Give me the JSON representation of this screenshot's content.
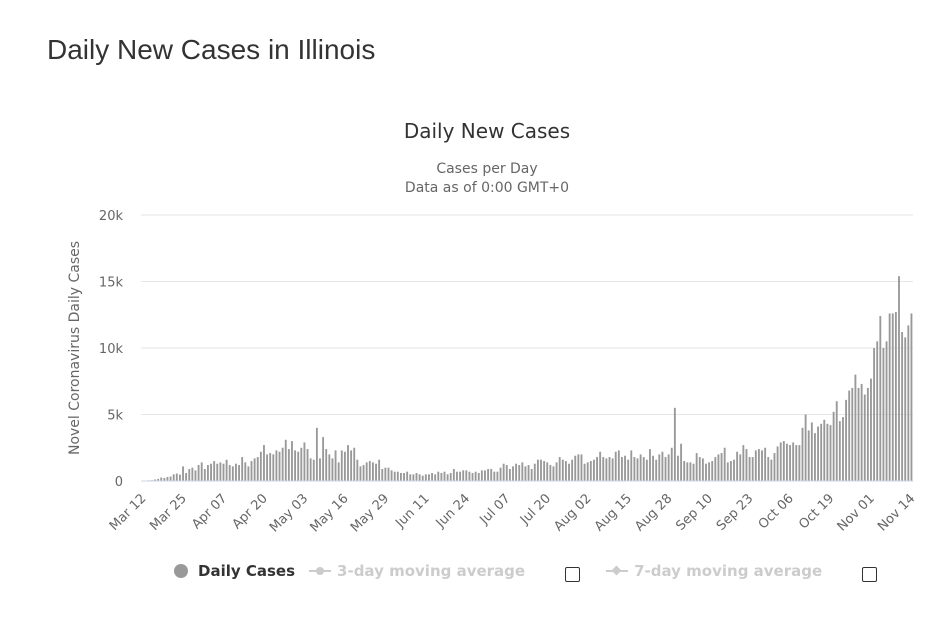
{
  "page": {
    "heading": "Daily New Cases in Illinois"
  },
  "legend": {
    "items": [
      {
        "label": "Daily Cases",
        "state": "visible"
      },
      {
        "label": "3-day moving average",
        "state": "hidden"
      },
      {
        "label": "7-day moving average",
        "state": "hidden"
      }
    ]
  },
  "colors": {
    "bar": "#999999",
    "grid": "#e6e6e6",
    "text": "#666666",
    "title": "#333333",
    "legend_hidden": "#cccccc"
  },
  "chart_data": {
    "type": "bar",
    "title": "Daily New Cases",
    "subtitle_lines": [
      "Cases per Day",
      "Data as of 0:00 GMT+0"
    ],
    "ylabel": "Novel Coronavirus Daily Cases",
    "xlabel": "",
    "ylim": [
      0,
      20000
    ],
    "y_ticks": [
      0,
      5000,
      10000,
      15000,
      20000
    ],
    "y_tick_labels": [
      "0",
      "5k",
      "10k",
      "15k",
      "20k"
    ],
    "x_tick_labels": [
      "Mar 12",
      "Mar 25",
      "Apr 07",
      "Apr 20",
      "May 03",
      "May 16",
      "May 29",
      "Jun 11",
      "Jun 24",
      "Jul 07",
      "Jul 20",
      "Aug 02",
      "Aug 15",
      "Aug 28",
      "Sep 10",
      "Sep 23",
      "Oct 06",
      "Oct 19",
      "Nov 01",
      "Nov 14"
    ],
    "x_tick_every": 13,
    "grid": true,
    "legend_position": "bottom",
    "series": [
      {
        "name": "Daily Cases",
        "start_date": "Mar 12",
        "values": [
          20,
          30,
          50,
          60,
          110,
          160,
          260,
          230,
          300,
          340,
          500,
          560,
          480,
          1100,
          600,
          900,
          1000,
          800,
          1200,
          1400,
          900,
          1200,
          1300,
          1500,
          1300,
          1400,
          1300,
          1600,
          1200,
          1100,
          1300,
          1200,
          1800,
          1400,
          1100,
          1500,
          1700,
          1800,
          2200,
          2700,
          2000,
          2100,
          2000,
          2300,
          2200,
          2500,
          3100,
          2400,
          3000,
          2300,
          2200,
          2500,
          2900,
          2400,
          1700,
          1600,
          4000,
          1700,
          3300,
          2400,
          2000,
          1700,
          2300,
          1400,
          2300,
          2200,
          2700,
          2300,
          2500,
          1600,
          1100,
          1200,
          1400,
          1500,
          1400,
          1300,
          1600,
          900,
          1000,
          1000,
          800,
          700,
          700,
          600,
          600,
          700,
          500,
          500,
          600,
          500,
          400,
          500,
          500,
          600,
          500,
          700,
          600,
          700,
          500,
          600,
          900,
          700,
          700,
          800,
          800,
          700,
          600,
          700,
          600,
          800,
          800,
          900,
          900,
          700,
          700,
          1000,
          1300,
          1200,
          900,
          1100,
          1300,
          1200,
          1400,
          1100,
          1200,
          900,
          1300,
          1600,
          1600,
          1500,
          1400,
          1200,
          1100,
          1400,
          1800,
          1600,
          1500,
          1300,
          1600,
          1900,
          2000,
          2000,
          1300,
          1400,
          1500,
          1600,
          1800,
          2200,
          1800,
          1700,
          1800,
          1700,
          2200,
          2300,
          1800,
          1900,
          1600,
          2300,
          1800,
          1700,
          2000,
          1800,
          1600,
          2400,
          1900,
          1600,
          2000,
          2200,
          1800,
          2000,
          2500,
          5500,
          1900,
          2800,
          1500,
          1400,
          1400,
          1300,
          2100,
          1800,
          1700,
          1300,
          1400,
          1500,
          1800,
          2000,
          2100,
          2500,
          1400,
          1500,
          1600,
          2200,
          2000,
          2700,
          2400,
          1800,
          1800,
          2300,
          2400,
          2300,
          2500,
          1800,
          1600,
          2100,
          2600,
          2900,
          3000,
          2800,
          2700,
          2900,
          2700,
          2700,
          4000,
          5000,
          3800,
          4400,
          3600,
          4100,
          4300,
          4600,
          4300,
          4200,
          5200,
          6000,
          4500,
          4800,
          6100,
          6800,
          7000,
          8000,
          7000,
          7300,
          6500,
          7000,
          7700,
          10000,
          10500,
          12400,
          10000,
          10500,
          12600,
          12600,
          12700,
          15400,
          11200,
          10800,
          11700,
          12600
        ]
      }
    ]
  }
}
